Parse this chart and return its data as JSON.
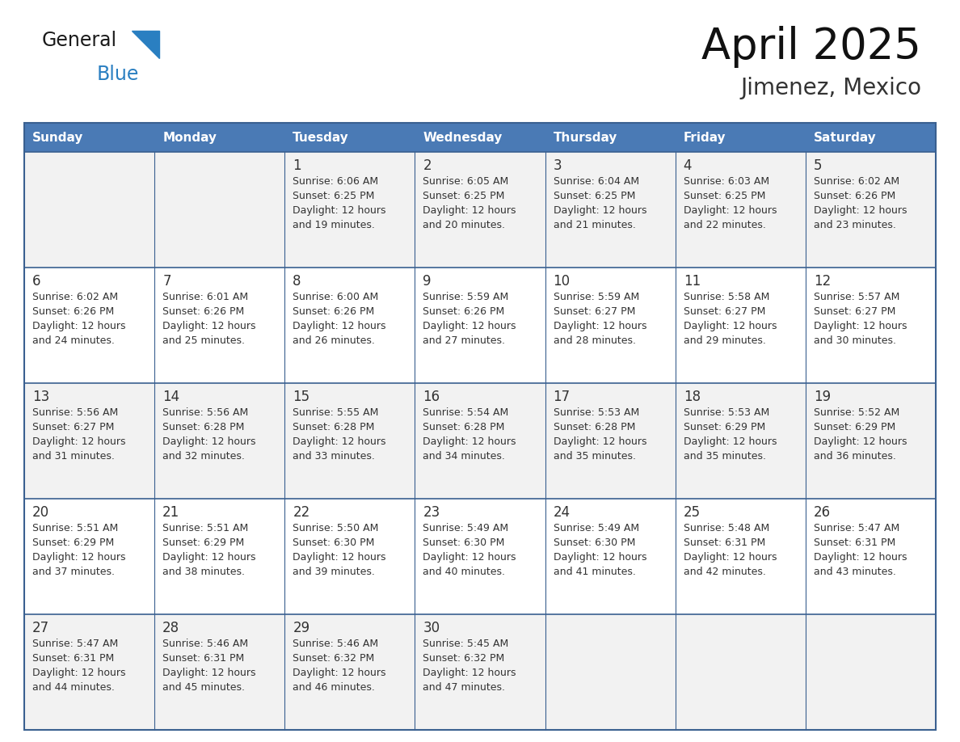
{
  "title": "April 2025",
  "subtitle": "Jimenez, Mexico",
  "header_bg": "#4a7ab5",
  "header_text": "#ffffff",
  "cell_bg_odd": "#f2f2f2",
  "cell_bg_even": "#ffffff",
  "border_color": "#3a6090",
  "text_color_dark": "#222222",
  "text_color_cell": "#333333",
  "days_of_week": [
    "Sunday",
    "Monday",
    "Tuesday",
    "Wednesday",
    "Thursday",
    "Friday",
    "Saturday"
  ],
  "logo_general_color": "#1a1a1a",
  "logo_blue_color": "#2a7fc1",
  "logo_triangle_color": "#2a7fc1",
  "weeks": [
    [
      {
        "day": "",
        "sunrise": "",
        "sunset": "",
        "daylight": ""
      },
      {
        "day": "",
        "sunrise": "",
        "sunset": "",
        "daylight": ""
      },
      {
        "day": "1",
        "sunrise": "Sunrise: 6:06 AM",
        "sunset": "Sunset: 6:25 PM",
        "daylight": "Daylight: 12 hours\nand 19 minutes."
      },
      {
        "day": "2",
        "sunrise": "Sunrise: 6:05 AM",
        "sunset": "Sunset: 6:25 PM",
        "daylight": "Daylight: 12 hours\nand 20 minutes."
      },
      {
        "day": "3",
        "sunrise": "Sunrise: 6:04 AM",
        "sunset": "Sunset: 6:25 PM",
        "daylight": "Daylight: 12 hours\nand 21 minutes."
      },
      {
        "day": "4",
        "sunrise": "Sunrise: 6:03 AM",
        "sunset": "Sunset: 6:25 PM",
        "daylight": "Daylight: 12 hours\nand 22 minutes."
      },
      {
        "day": "5",
        "sunrise": "Sunrise: 6:02 AM",
        "sunset": "Sunset: 6:26 PM",
        "daylight": "Daylight: 12 hours\nand 23 minutes."
      }
    ],
    [
      {
        "day": "6",
        "sunrise": "Sunrise: 6:02 AM",
        "sunset": "Sunset: 6:26 PM",
        "daylight": "Daylight: 12 hours\nand 24 minutes."
      },
      {
        "day": "7",
        "sunrise": "Sunrise: 6:01 AM",
        "sunset": "Sunset: 6:26 PM",
        "daylight": "Daylight: 12 hours\nand 25 minutes."
      },
      {
        "day": "8",
        "sunrise": "Sunrise: 6:00 AM",
        "sunset": "Sunset: 6:26 PM",
        "daylight": "Daylight: 12 hours\nand 26 minutes."
      },
      {
        "day": "9",
        "sunrise": "Sunrise: 5:59 AM",
        "sunset": "Sunset: 6:26 PM",
        "daylight": "Daylight: 12 hours\nand 27 minutes."
      },
      {
        "day": "10",
        "sunrise": "Sunrise: 5:59 AM",
        "sunset": "Sunset: 6:27 PM",
        "daylight": "Daylight: 12 hours\nand 28 minutes."
      },
      {
        "day": "11",
        "sunrise": "Sunrise: 5:58 AM",
        "sunset": "Sunset: 6:27 PM",
        "daylight": "Daylight: 12 hours\nand 29 minutes."
      },
      {
        "day": "12",
        "sunrise": "Sunrise: 5:57 AM",
        "sunset": "Sunset: 6:27 PM",
        "daylight": "Daylight: 12 hours\nand 30 minutes."
      }
    ],
    [
      {
        "day": "13",
        "sunrise": "Sunrise: 5:56 AM",
        "sunset": "Sunset: 6:27 PM",
        "daylight": "Daylight: 12 hours\nand 31 minutes."
      },
      {
        "day": "14",
        "sunrise": "Sunrise: 5:56 AM",
        "sunset": "Sunset: 6:28 PM",
        "daylight": "Daylight: 12 hours\nand 32 minutes."
      },
      {
        "day": "15",
        "sunrise": "Sunrise: 5:55 AM",
        "sunset": "Sunset: 6:28 PM",
        "daylight": "Daylight: 12 hours\nand 33 minutes."
      },
      {
        "day": "16",
        "sunrise": "Sunrise: 5:54 AM",
        "sunset": "Sunset: 6:28 PM",
        "daylight": "Daylight: 12 hours\nand 34 minutes."
      },
      {
        "day": "17",
        "sunrise": "Sunrise: 5:53 AM",
        "sunset": "Sunset: 6:28 PM",
        "daylight": "Daylight: 12 hours\nand 35 minutes."
      },
      {
        "day": "18",
        "sunrise": "Sunrise: 5:53 AM",
        "sunset": "Sunset: 6:29 PM",
        "daylight": "Daylight: 12 hours\nand 35 minutes."
      },
      {
        "day": "19",
        "sunrise": "Sunrise: 5:52 AM",
        "sunset": "Sunset: 6:29 PM",
        "daylight": "Daylight: 12 hours\nand 36 minutes."
      }
    ],
    [
      {
        "day": "20",
        "sunrise": "Sunrise: 5:51 AM",
        "sunset": "Sunset: 6:29 PM",
        "daylight": "Daylight: 12 hours\nand 37 minutes."
      },
      {
        "day": "21",
        "sunrise": "Sunrise: 5:51 AM",
        "sunset": "Sunset: 6:29 PM",
        "daylight": "Daylight: 12 hours\nand 38 minutes."
      },
      {
        "day": "22",
        "sunrise": "Sunrise: 5:50 AM",
        "sunset": "Sunset: 6:30 PM",
        "daylight": "Daylight: 12 hours\nand 39 minutes."
      },
      {
        "day": "23",
        "sunrise": "Sunrise: 5:49 AM",
        "sunset": "Sunset: 6:30 PM",
        "daylight": "Daylight: 12 hours\nand 40 minutes."
      },
      {
        "day": "24",
        "sunrise": "Sunrise: 5:49 AM",
        "sunset": "Sunset: 6:30 PM",
        "daylight": "Daylight: 12 hours\nand 41 minutes."
      },
      {
        "day": "25",
        "sunrise": "Sunrise: 5:48 AM",
        "sunset": "Sunset: 6:31 PM",
        "daylight": "Daylight: 12 hours\nand 42 minutes."
      },
      {
        "day": "26",
        "sunrise": "Sunrise: 5:47 AM",
        "sunset": "Sunset: 6:31 PM",
        "daylight": "Daylight: 12 hours\nand 43 minutes."
      }
    ],
    [
      {
        "day": "27",
        "sunrise": "Sunrise: 5:47 AM",
        "sunset": "Sunset: 6:31 PM",
        "daylight": "Daylight: 12 hours\nand 44 minutes."
      },
      {
        "day": "28",
        "sunrise": "Sunrise: 5:46 AM",
        "sunset": "Sunset: 6:31 PM",
        "daylight": "Daylight: 12 hours\nand 45 minutes."
      },
      {
        "day": "29",
        "sunrise": "Sunrise: 5:46 AM",
        "sunset": "Sunset: 6:32 PM",
        "daylight": "Daylight: 12 hours\nand 46 minutes."
      },
      {
        "day": "30",
        "sunrise": "Sunrise: 5:45 AM",
        "sunset": "Sunset: 6:32 PM",
        "daylight": "Daylight: 12 hours\nand 47 minutes."
      },
      {
        "day": "",
        "sunrise": "",
        "sunset": "",
        "daylight": ""
      },
      {
        "day": "",
        "sunrise": "",
        "sunset": "",
        "daylight": ""
      },
      {
        "day": "",
        "sunrise": "",
        "sunset": "",
        "daylight": ""
      }
    ]
  ]
}
